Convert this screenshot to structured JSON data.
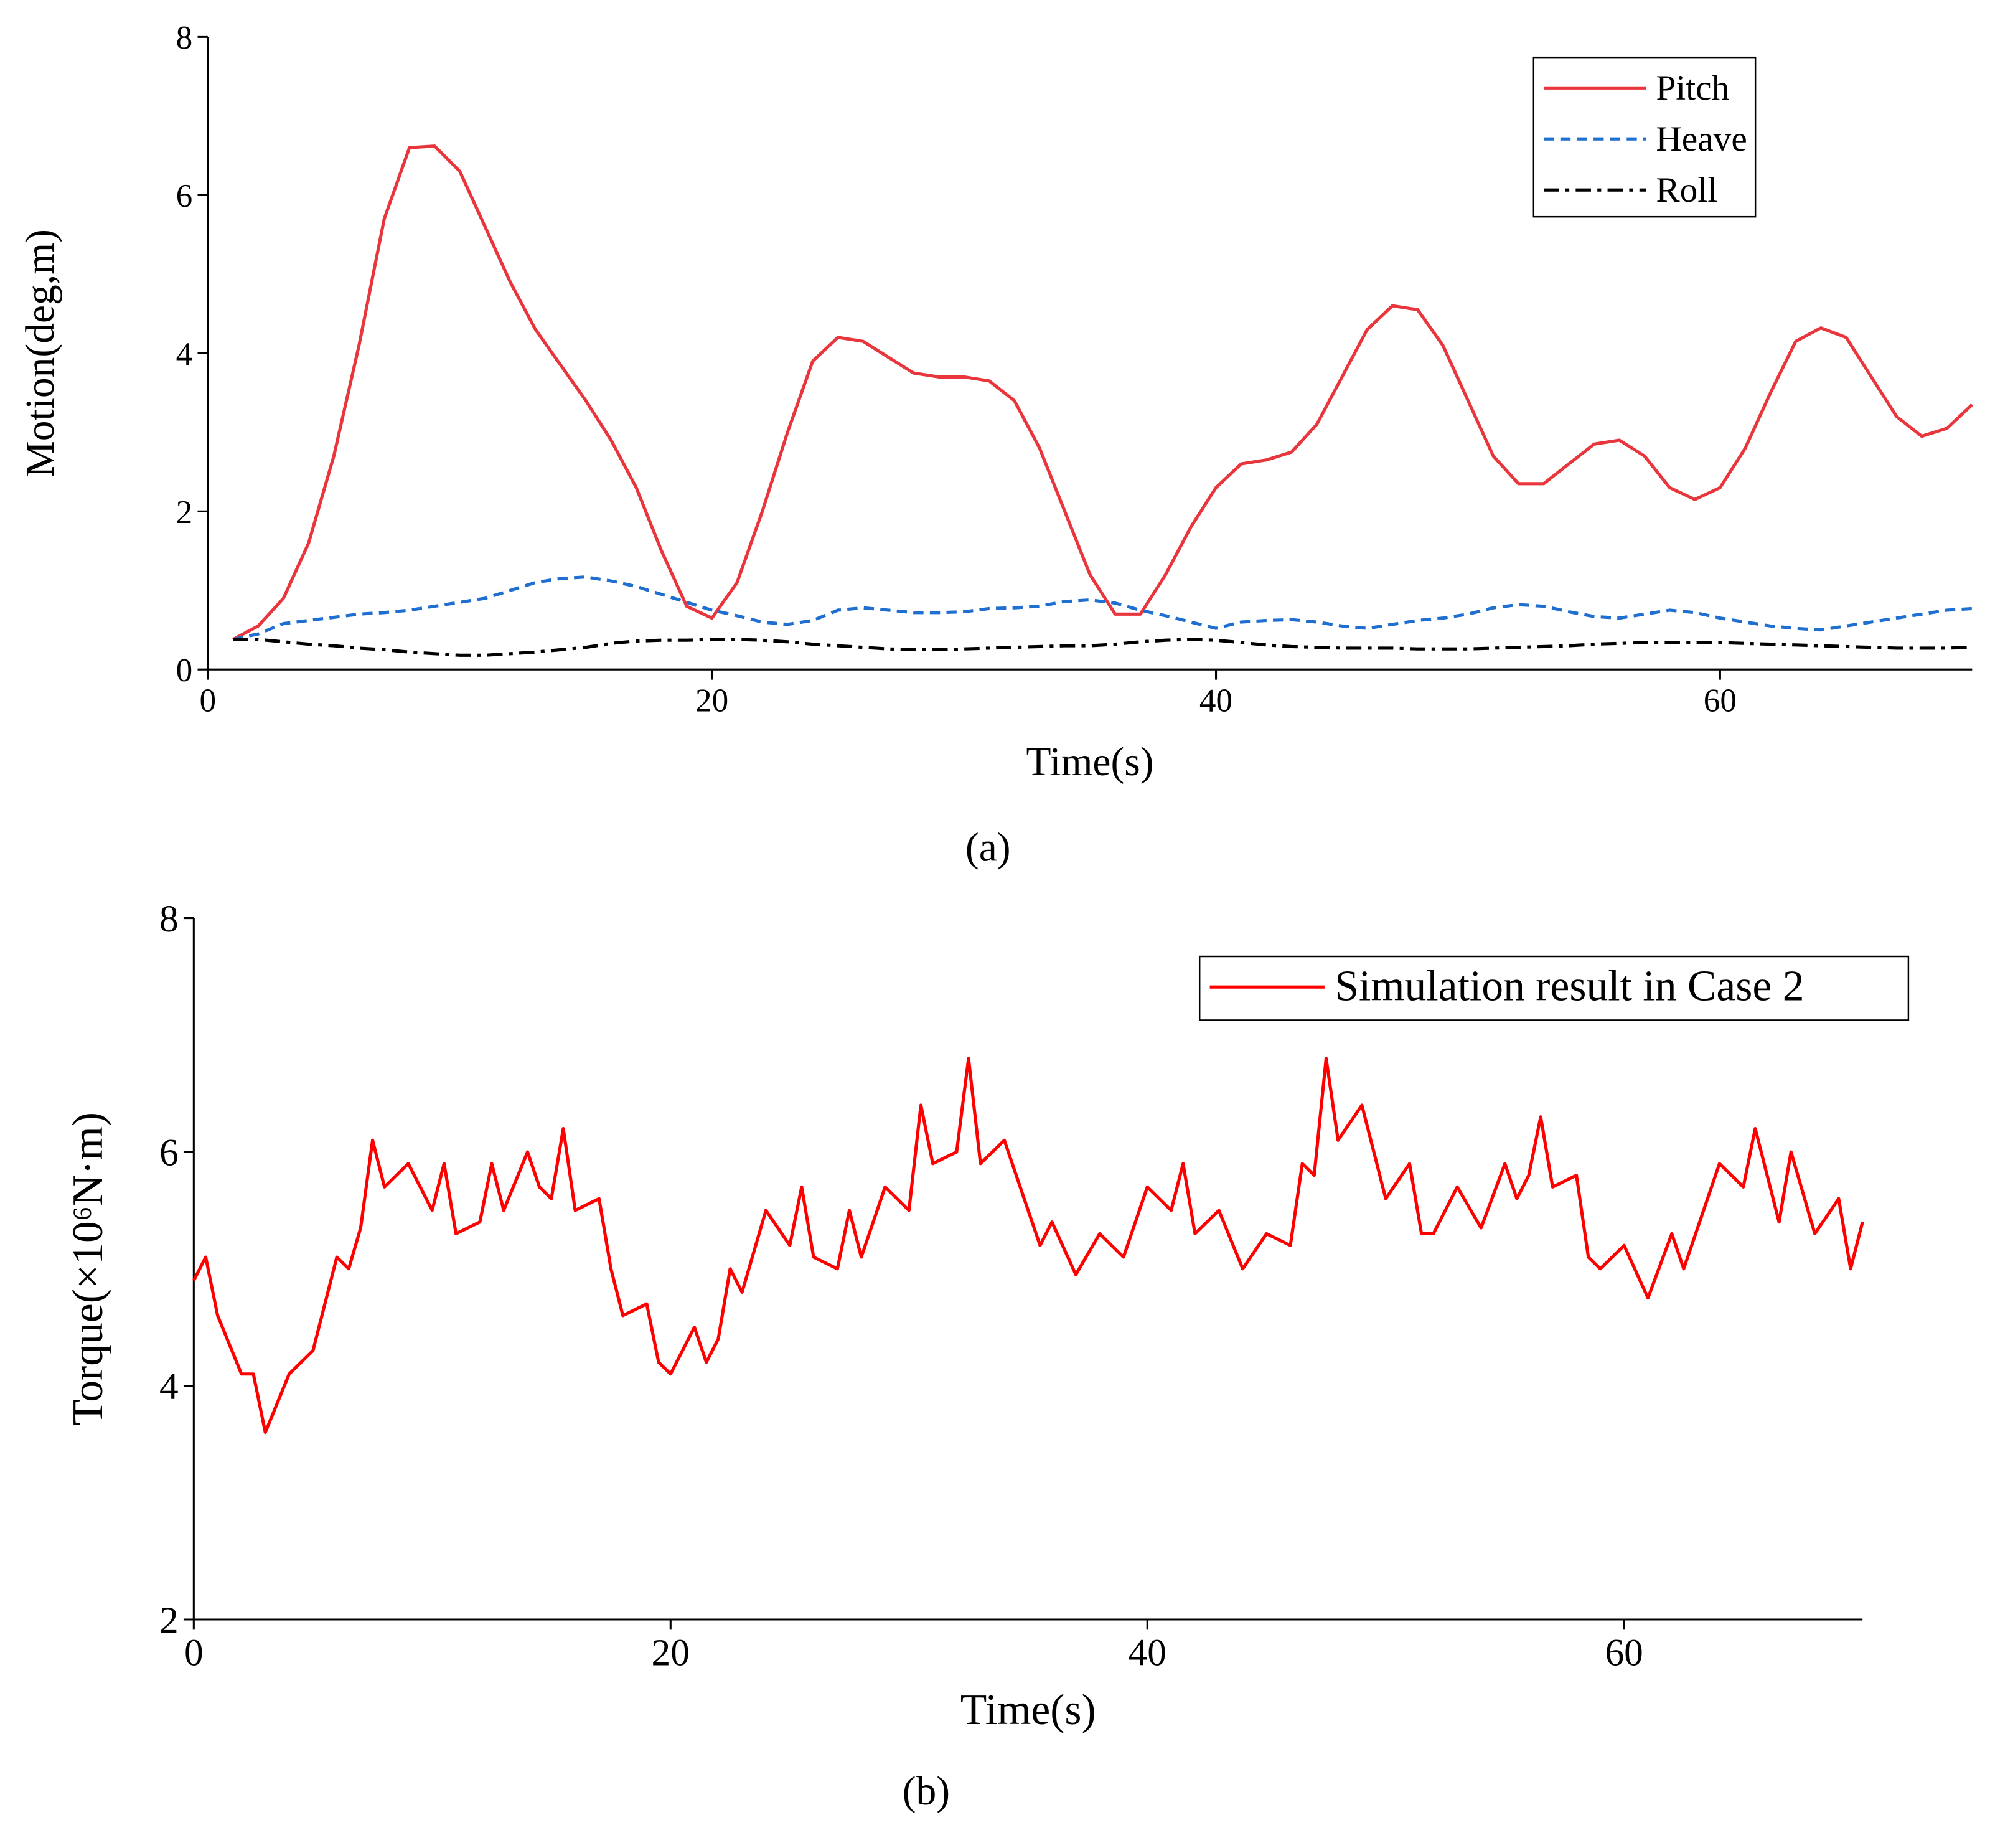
{
  "chart_data": [
    {
      "type": "line",
      "caption": "(a)",
      "xlabel": "Time(s)",
      "ylabel": "Motion(deg,m)",
      "xlim": [
        0,
        70
      ],
      "xticks": [
        0,
        20,
        40,
        60
      ],
      "ylim": [
        0,
        8
      ],
      "yticks": [
        0,
        2,
        4,
        6,
        8
      ],
      "legend": "upper right",
      "x": [
        1,
        2,
        3,
        4,
        5,
        6,
        7,
        8,
        9,
        10,
        11,
        12,
        13,
        14,
        15,
        16,
        17,
        18,
        19,
        20,
        21,
        22,
        23,
        24,
        25,
        26,
        27,
        28,
        29,
        30,
        31,
        32,
        33,
        34,
        35,
        36,
        37,
        38,
        39,
        40,
        41,
        42,
        43,
        44,
        45,
        46,
        47,
        48,
        49,
        50,
        51,
        52,
        53,
        54,
        55,
        56,
        57,
        58,
        59,
        60,
        61,
        62,
        63,
        64,
        65,
        66,
        67,
        68,
        69,
        70
      ],
      "series": [
        {
          "name": "Pitch",
          "color": "#e8363c",
          "linestyle": "solid",
          "values": [
            0.38,
            0.55,
            0.9,
            1.6,
            2.7,
            4.1,
            5.7,
            6.6,
            6.62,
            6.3,
            5.6,
            4.9,
            4.3,
            3.85,
            3.4,
            2.9,
            2.3,
            1.5,
            0.8,
            0.65,
            1.1,
            2.0,
            3.0,
            3.9,
            4.2,
            4.15,
            3.95,
            3.75,
            3.7,
            3.7,
            3.65,
            3.4,
            2.8,
            2.0,
            1.2,
            0.7,
            0.7,
            1.2,
            1.8,
            2.3,
            2.6,
            2.65,
            2.75,
            3.1,
            3.7,
            4.3,
            4.6,
            4.55,
            4.1,
            3.4,
            2.7,
            2.35,
            2.35,
            2.6,
            2.85,
            2.9,
            2.7,
            2.3,
            2.15,
            2.3,
            2.8,
            3.5,
            4.15,
            4.32,
            4.2,
            3.7,
            3.2,
            2.95,
            3.05,
            3.35
          ]
        },
        {
          "name": "Heave",
          "color": "#1f6fd1",
          "linestyle": "dashed",
          "values": [
            0.38,
            0.45,
            0.58,
            0.62,
            0.66,
            0.7,
            0.72,
            0.75,
            0.8,
            0.85,
            0.9,
            1.0,
            1.1,
            1.15,
            1.17,
            1.12,
            1.05,
            0.95,
            0.85,
            0.75,
            0.68,
            0.6,
            0.57,
            0.62,
            0.75,
            0.78,
            0.75,
            0.72,
            0.72,
            0.73,
            0.77,
            0.78,
            0.8,
            0.86,
            0.88,
            0.84,
            0.75,
            0.68,
            0.6,
            0.52,
            0.6,
            0.62,
            0.63,
            0.6,
            0.55,
            0.52,
            0.57,
            0.62,
            0.65,
            0.7,
            0.78,
            0.82,
            0.8,
            0.73,
            0.67,
            0.65,
            0.7,
            0.75,
            0.72,
            0.65,
            0.6,
            0.55,
            0.52,
            0.5,
            0.55,
            0.6,
            0.65,
            0.7,
            0.75,
            0.77
          ]
        },
        {
          "name": "Roll",
          "color": "#000000",
          "linestyle": "dashdot",
          "values": [
            0.38,
            0.38,
            0.35,
            0.32,
            0.3,
            0.27,
            0.25,
            0.22,
            0.2,
            0.18,
            0.18,
            0.2,
            0.22,
            0.25,
            0.28,
            0.33,
            0.36,
            0.37,
            0.37,
            0.38,
            0.38,
            0.37,
            0.35,
            0.32,
            0.3,
            0.28,
            0.26,
            0.25,
            0.25,
            0.26,
            0.27,
            0.28,
            0.29,
            0.3,
            0.3,
            0.32,
            0.35,
            0.37,
            0.38,
            0.37,
            0.34,
            0.31,
            0.29,
            0.28,
            0.27,
            0.27,
            0.27,
            0.26,
            0.26,
            0.26,
            0.27,
            0.28,
            0.29,
            0.3,
            0.32,
            0.33,
            0.34,
            0.34,
            0.34,
            0.34,
            0.33,
            0.32,
            0.31,
            0.3,
            0.29,
            0.28,
            0.27,
            0.27,
            0.27,
            0.28
          ]
        }
      ]
    },
    {
      "type": "line",
      "caption": "(b)",
      "xlabel": "Time(s)",
      "ylabel": "Torque(×10⁶N·m)",
      "xlim": [
        0,
        70
      ],
      "xticks": [
        0,
        20,
        40,
        60
      ],
      "ylim": [
        2,
        8
      ],
      "yticks": [
        2,
        4,
        6,
        8
      ],
      "legend": "upper right",
      "x": [
        0,
        0.5,
        1,
        2,
        2.5,
        3,
        4,
        5,
        6,
        6.5,
        7,
        7.5,
        8,
        9,
        10,
        10.5,
        11,
        12,
        12.5,
        13,
        14,
        14.5,
        15,
        15.5,
        16,
        17,
        17.5,
        18,
        19,
        19.5,
        20,
        21,
        21.5,
        22,
        22.5,
        23,
        24,
        25,
        25.5,
        26,
        27,
        27.5,
        28,
        29,
        30,
        30.5,
        31,
        32,
        32.5,
        33,
        34,
        35,
        35.5,
        36,
        37,
        38,
        39,
        40,
        41,
        41.5,
        42,
        43,
        44,
        45,
        46,
        46.5,
        47,
        47.5,
        48,
        49,
        50,
        51,
        51.5,
        52,
        53,
        54,
        55,
        55.5,
        56,
        56.5,
        57,
        58,
        58.5,
        59,
        60,
        61,
        62,
        62.5,
        63,
        64,
        65,
        65.5,
        66,
        66.5,
        67,
        68,
        69,
        69.5,
        70
      ],
      "series": [
        {
          "name": "Simulation result in Case 2",
          "color": "#ff0000",
          "linestyle": "solid",
          "values": [
            4.9,
            5.1,
            4.6,
            4.1,
            4.1,
            3.6,
            4.1,
            4.3,
            5.1,
            5.0,
            5.35,
            6.1,
            5.7,
            5.9,
            5.5,
            5.9,
            5.3,
            5.4,
            5.9,
            5.5,
            6.0,
            5.7,
            5.6,
            6.2,
            5.5,
            5.6,
            5.0,
            4.6,
            4.7,
            4.2,
            4.1,
            4.5,
            4.2,
            4.4,
            5.0,
            4.8,
            5.5,
            5.2,
            5.7,
            5.1,
            5.0,
            5.5,
            5.1,
            5.7,
            5.5,
            6.4,
            5.9,
            6.0,
            6.8,
            5.9,
            6.1,
            5.5,
            5.2,
            5.4,
            4.95,
            5.3,
            5.1,
            5.7,
            5.5,
            5.9,
            5.3,
            5.5,
            5.0,
            5.3,
            5.2,
            5.9,
            5.8,
            6.8,
            6.1,
            6.4,
            5.6,
            5.9,
            5.3,
            5.3,
            5.7,
            5.35,
            5.9,
            5.6,
            5.8,
            6.3,
            5.7,
            5.8,
            5.1,
            5.0,
            5.2,
            4.75,
            5.3,
            5.0,
            5.3,
            5.9,
            5.7,
            6.2,
            5.8,
            5.4,
            6.0,
            5.3,
            5.6,
            5.0,
            5.4
          ]
        }
      ]
    }
  ]
}
